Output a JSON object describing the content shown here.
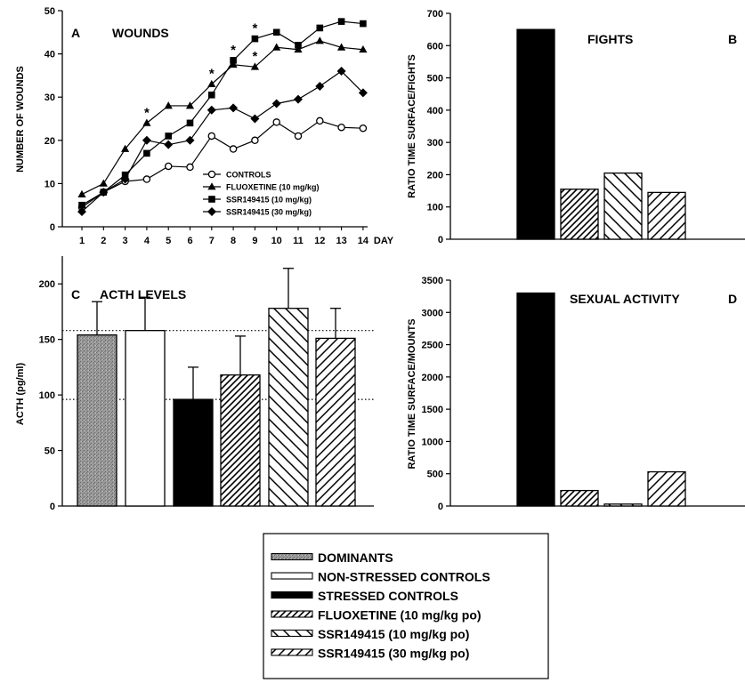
{
  "chart_data": [
    {
      "panel": "A",
      "type": "line",
      "title": "WOUNDS",
      "ylabel": "NUMBER OF WOUNDS",
      "xlabel": "DAY",
      "ylim": [
        0,
        50
      ],
      "yticks": [
        "0",
        "10",
        "20",
        "30",
        "40",
        "50"
      ],
      "categories": [
        "1",
        "2",
        "3",
        "4",
        "5",
        "6",
        "7",
        "8",
        "9",
        "10",
        "11",
        "12",
        "13",
        "14"
      ],
      "series": [
        {
          "name": "CONTROLS",
          "marker": "circle-open",
          "values": [
            4.5,
            8,
            10.5,
            11,
            14,
            13.8,
            21,
            18,
            20,
            24.2,
            21,
            24.5,
            23,
            22.8
          ]
        },
        {
          "name": "FLUOXETINE (10 mg/kg)",
          "marker": "triangle",
          "values": [
            7.5,
            10,
            18,
            24,
            28,
            28,
            33,
            37.5,
            37,
            41.5,
            41,
            43,
            41.5,
            41
          ]
        },
        {
          "name": "SSR149415 (10 mg/kg)",
          "marker": "square",
          "values": [
            5,
            8,
            12,
            17,
            21,
            24,
            30.5,
            38.5,
            43.5,
            45,
            42,
            46,
            47.5,
            47
          ]
        },
        {
          "name": "SSR149415 (30 mg/kg)",
          "marker": "diamond",
          "values": [
            3.5,
            8,
            11,
            20,
            19,
            20,
            27,
            27.5,
            25,
            28.5,
            29.5,
            32.5,
            36,
            31
          ]
        }
      ],
      "annotations": [
        {
          "text": "*",
          "x": "4",
          "y": 24
        },
        {
          "text": "*",
          "x": "7",
          "y": 33
        },
        {
          "text": "*",
          "x": "8",
          "y": 38.5
        },
        {
          "text": "*",
          "x": "9",
          "y": 43.5
        },
        {
          "text": "*",
          "x": "9",
          "y": 37
        }
      ]
    },
    {
      "panel": "B",
      "type": "bar",
      "title": "FIGHTS",
      "ylabel": "RATIO TIME SURFACE/FIGHTS",
      "ylim": [
        0,
        700
      ],
      "yticks": [
        "0",
        "100",
        "200",
        "300",
        "400",
        "500",
        "600",
        "700"
      ],
      "categories": [
        "STRESSED CONTROLS",
        "FLUOXETINE (10 mg/kg po)",
        "SSR149415 (10 mg/kg po)",
        "SSR149415 (30 mg/kg po)"
      ],
      "values": [
        650,
        155,
        205,
        145
      ]
    },
    {
      "panel": "C",
      "type": "bar",
      "title": "ACTH LEVELS",
      "ylabel": "ACTH (pg/ml)",
      "ylim": [
        0,
        225
      ],
      "yticks": [
        "0",
        "50",
        "100",
        "150",
        "200"
      ],
      "categories": [
        "DOMINANTS",
        "NON-STRESSED CONTROLS",
        "STRESSED CONTROLS",
        "FLUOXETINE (10 mg/kg po)",
        "SSR149415 (10 mg/kg po)",
        "SSR149415 (30 mg/kg po)"
      ],
      "values": [
        154,
        158,
        96,
        118,
        178,
        151
      ],
      "errors": [
        30,
        30,
        29,
        35,
        36,
        27
      ],
      "reference_lines": [
        158,
        96
      ]
    },
    {
      "panel": "D",
      "type": "bar",
      "title": "SEXUAL ACTIVITY",
      "ylabel": "RATIO TIME SURFACE/MOUNTS",
      "ylim": [
        0,
        3500
      ],
      "yticks": [
        "0",
        "500",
        "1000",
        "1500",
        "2000",
        "2500",
        "3000",
        "3500"
      ],
      "categories": [
        "STRESSED CONTROLS",
        "FLUOXETINE (10 mg/kg po)",
        "SSR149415 (10 mg/kg po)",
        "SSR149415 (30 mg/kg po)"
      ],
      "values": [
        3300,
        240,
        30,
        530
      ]
    }
  ],
  "legend": [
    {
      "label": "DOMINANTS",
      "pattern": "gray"
    },
    {
      "label": "NON-STRESSED CONTROLS",
      "pattern": "white"
    },
    {
      "label": "STRESSED CONTROLS",
      "pattern": "black"
    },
    {
      "label": "FLUOXETINE (10 mg/kg po)",
      "pattern": "diag-dense"
    },
    {
      "label": "SSR149415 (10 mg/kg po)",
      "pattern": "diag-back"
    },
    {
      "label": "SSR149415 (30 mg/kg po)",
      "pattern": "diag-sparse"
    }
  ]
}
